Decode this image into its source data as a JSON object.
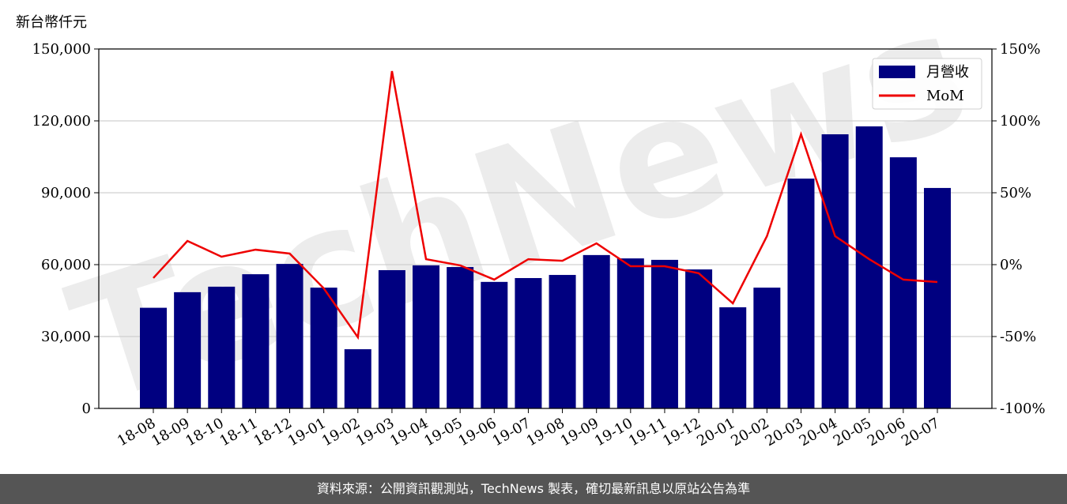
{
  "chart_data": {
    "type": "bar-line",
    "y_label": "新台幣仟元",
    "watermark": "TechNews",
    "categories": [
      "18-08",
      "18-09",
      "18-10",
      "18-11",
      "18-12",
      "19-01",
      "19-02",
      "19-03",
      "19-04",
      "19-05",
      "19-06",
      "19-07",
      "19-08",
      "19-09",
      "19-10",
      "19-11",
      "19-12",
      "20-01",
      "20-02",
      "20-03",
      "20-04",
      "20-05",
      "20-06",
      "20-07"
    ],
    "series": [
      {
        "name": "月營收",
        "color": "#000080",
        "type": "bar",
        "values": [
          42000,
          48500,
          50800,
          56000,
          60300,
          50400,
          24700,
          57700,
          59700,
          59000,
          52800,
          54400,
          55700,
          64000,
          62600,
          62000,
          58000,
          42200,
          50400,
          95900,
          114400,
          117700,
          104800,
          92000
        ]
      },
      {
        "name": "MoM",
        "color": "#ee0000",
        "type": "line",
        "axis": "y2",
        "values": [
          -9.3,
          16.5,
          5.5,
          10.4,
          7.7,
          -16.5,
          -50.5,
          134.6,
          3.8,
          -0.5,
          -10.4,
          3.8,
          2.7,
          14.8,
          -1.1,
          -1.1,
          -6.0,
          -26.9,
          19.8,
          90.7,
          19.8,
          3.8,
          -10.4,
          -12.1
        ]
      }
    ],
    "ylim": [
      0,
      150000
    ],
    "yticks": [
      0,
      {
        "value": 30000,
        "label": "30,000"
      },
      {
        "value": 60000,
        "label": "60,000"
      },
      {
        "value": 90000,
        "label": "90,000"
      },
      {
        "value": 120000,
        "label": "120,000"
      },
      {
        "value": 150000,
        "label": "150,000"
      }
    ],
    "y2lim": [
      -100,
      150
    ],
    "y2ticks": [
      {
        "value": -100,
        "label": "-100%"
      },
      {
        "value": -50,
        "label": "-50%"
      },
      {
        "value": 0,
        "label": "0%"
      },
      {
        "value": 50,
        "label": "50%"
      },
      {
        "value": 100,
        "label": "100%"
      },
      {
        "value": 150,
        "label": "150%"
      }
    ],
    "grid": true,
    "legend": "upper right",
    "footer": "資料來源：公開資訊觀測站，TechNews 製表，確切最新訊息以原站公告為準"
  }
}
